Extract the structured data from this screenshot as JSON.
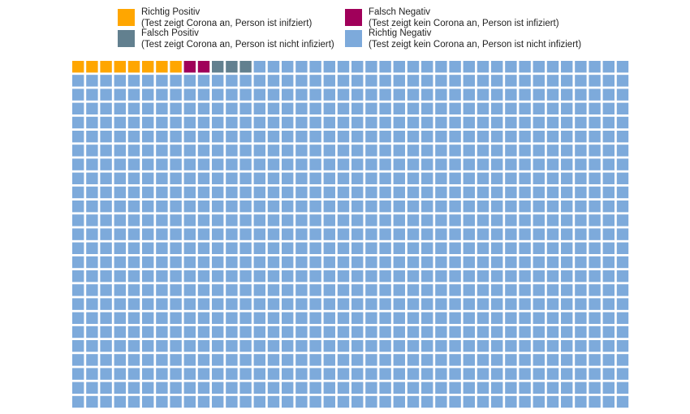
{
  "chart_data": {
    "type": "waffle",
    "grid": {
      "columns": 40,
      "rows": 25
    },
    "total": 1000,
    "categories": [
      {
        "name": "Richtig Positiv",
        "description": "(Test zeigt Corona an, Person ist inifziert)",
        "count": 8,
        "color": "#FFA600"
      },
      {
        "name": "Falsch Negativ",
        "description": "(Test zeigt kein Corona an, Person ist infiziert)",
        "count": 2,
        "color": "#A0005A"
      },
      {
        "name": "Falsch Positiv",
        "description": "(Test zeigt Corona an, Person ist nicht infiziert)",
        "count": 3,
        "color": "#62808F"
      },
      {
        "name": "Richtig Negativ",
        "description": "(Test zeigt kein Corona an, Person ist nicht infiziert)",
        "count": 987,
        "color": "#7DAADB"
      }
    ],
    "legend_position": "top"
  }
}
